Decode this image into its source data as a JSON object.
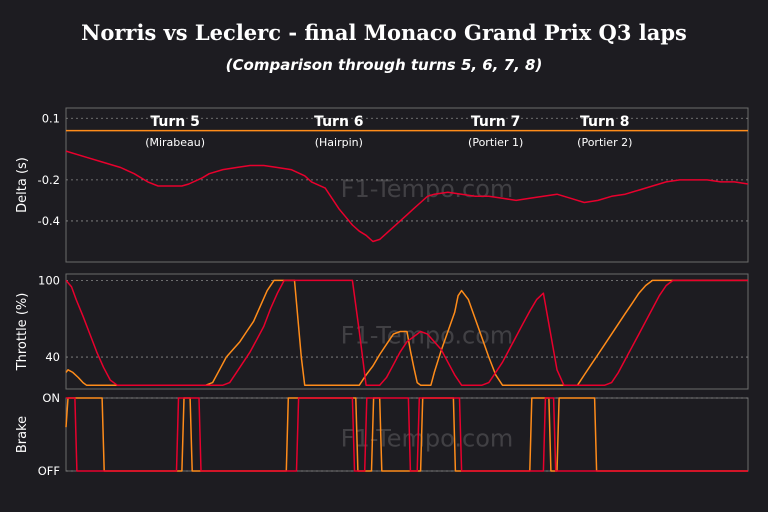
{
  "title": "Norris vs Leclerc - final Monaco Grand Prix Q3 laps",
  "subtitle": "(Comparison through turns 5, 6, 7, 8)",
  "watermark": "F1-Tempo.com",
  "colors": {
    "background": "#1d1c21",
    "norris": "#ff8c1a",
    "leclerc": "#e8002d",
    "grid": "#8a8a8a",
    "frame": "#6b6b6b",
    "text": "#ffffff",
    "muted": "#cfcfcf"
  },
  "turns": [
    {
      "name": "Turn 5",
      "label": "(Mirabeau)",
      "x": 16
    },
    {
      "name": "Turn 6",
      "label": "(Hairpin)",
      "x": 40
    },
    {
      "name": "Turn 7",
      "label": "(Portier 1)",
      "x": 63
    },
    {
      "name": "Turn 8",
      "label": "(Portier 2)",
      "x": 79
    }
  ],
  "chart_data": [
    {
      "type": "line",
      "ylabel": "Delta (s)",
      "ylim": [
        -0.6,
        0.15
      ],
      "yticks": [
        0.1,
        -0.2,
        -0.4
      ],
      "yticklabels": [
        "0.1",
        "-0.2",
        "-0.4"
      ],
      "xlim": [
        0,
        100
      ],
      "grid": true,
      "series": [
        {
          "name": "Norris",
          "color": "#ff8c1a",
          "x": [
            0,
            100
          ],
          "y": [
            0.04,
            0.04
          ]
        },
        {
          "name": "Leclerc",
          "color": "#e8002d",
          "x": [
            0,
            3,
            5,
            8,
            10,
            12,
            13.5,
            15,
            17,
            18,
            20,
            21,
            23,
            25,
            27,
            29,
            31,
            33,
            35,
            36,
            38,
            39,
            40,
            41,
            42,
            43,
            44,
            45,
            46,
            47,
            48,
            49,
            50,
            51,
            52,
            53,
            54,
            56,
            58,
            60,
            62,
            64,
            66,
            68,
            70,
            72,
            74,
            76,
            78,
            80,
            82,
            84,
            86,
            88,
            90,
            92,
            94,
            96,
            98,
            100
          ],
          "y": [
            -0.06,
            -0.09,
            -0.11,
            -0.14,
            -0.17,
            -0.21,
            -0.23,
            -0.23,
            -0.23,
            -0.22,
            -0.19,
            -0.17,
            -0.15,
            -0.14,
            -0.13,
            -0.13,
            -0.14,
            -0.15,
            -0.18,
            -0.21,
            -0.24,
            -0.29,
            -0.34,
            -0.38,
            -0.42,
            -0.45,
            -0.47,
            -0.5,
            -0.49,
            -0.46,
            -0.43,
            -0.4,
            -0.37,
            -0.34,
            -0.31,
            -0.28,
            -0.27,
            -0.26,
            -0.27,
            -0.28,
            -0.28,
            -0.29,
            -0.3,
            -0.29,
            -0.28,
            -0.27,
            -0.29,
            -0.31,
            -0.3,
            -0.28,
            -0.27,
            -0.25,
            -0.23,
            -0.21,
            -0.2,
            -0.2,
            -0.2,
            -0.21,
            -0.21,
            -0.22
          ]
        }
      ]
    },
    {
      "type": "line",
      "ylabel": "Throttle (%)",
      "ylim": [
        15,
        105
      ],
      "yticks": [
        100,
        40
      ],
      "yticklabels": [
        "100",
        "40"
      ],
      "xlim": [
        0,
        100
      ],
      "grid": true,
      "series": [
        {
          "name": "Norris",
          "color": "#ff8c1a",
          "x": [
            0,
            0.3,
            1.0,
            1.8,
            2.5,
            3.0,
            3.5,
            18.5,
            19.5,
            20.5,
            21.5,
            22.5,
            23.5,
            24.5,
            25.5,
            26.5,
            27.5,
            28.5,
            29.5,
            30.5,
            31.5,
            32.5,
            33,
            33.5,
            34,
            34.5,
            35,
            35.5,
            36,
            36.5,
            37,
            37.5,
            38,
            38.5,
            39,
            39.5,
            40,
            40.5,
            41,
            41.5,
            42,
            43,
            44,
            45,
            46,
            47,
            48,
            49,
            50,
            50.5,
            51,
            51.5,
            52,
            53,
            53.5,
            54,
            55,
            56,
            57,
            57.5,
            58,
            59,
            60,
            61,
            62,
            63,
            64,
            65,
            66,
            67,
            68,
            69,
            70,
            71,
            72,
            73,
            74,
            74.5,
            75,
            75.5,
            76,
            77,
            78,
            79,
            80,
            81,
            82,
            83,
            84,
            85,
            86,
            87,
            88,
            89,
            90,
            92,
            94,
            96,
            98,
            100
          ],
          "y": [
            28,
            30,
            28,
            24,
            20,
            18,
            18,
            18,
            18,
            18,
            20,
            30,
            40,
            46,
            52,
            60,
            68,
            80,
            92,
            100,
            100,
            100,
            100,
            100,
            70,
            40,
            18,
            18,
            18,
            18,
            18,
            18,
            18,
            18,
            18,
            18,
            18,
            18,
            18,
            18,
            18,
            18,
            26,
            33,
            42,
            50,
            58,
            60,
            60,
            45,
            32,
            20,
            18,
            18,
            18,
            28,
            45,
            60,
            75,
            88,
            92,
            85,
            70,
            55,
            40,
            26,
            18,
            18,
            18,
            18,
            18,
            18,
            18,
            18,
            18,
            18,
            18,
            18,
            18,
            22,
            26,
            34,
            42,
            50,
            58,
            66,
            74,
            82,
            90,
            96,
            100,
            100,
            100,
            100,
            100,
            100,
            100,
            100,
            100,
            100
          ]
        },
        {
          "name": "Leclerc",
          "color": "#e8002d",
          "x": [
            0,
            0.8,
            1.5,
            2.5,
            3.5,
            4.5,
            5.5,
            6.5,
            7.5,
            8.5,
            9.5,
            10.5,
            11.5,
            12.5,
            13.5,
            19,
            20,
            21,
            22,
            23,
            24,
            25,
            26,
            27,
            28,
            29,
            30,
            31,
            32,
            33,
            34,
            35,
            36,
            37,
            37.5,
            38,
            38.5,
            39,
            39.5,
            40,
            40.5,
            41,
            42,
            43,
            44,
            45,
            46,
            47,
            48,
            49,
            50,
            51,
            52,
            53,
            54,
            55,
            56,
            57,
            58,
            59,
            60,
            61,
            62,
            63,
            64,
            65,
            66,
            67,
            68,
            69,
            70,
            71,
            72,
            73,
            74,
            75,
            76,
            77,
            78,
            79,
            80,
            81,
            82,
            83,
            84,
            85,
            86,
            87,
            88,
            89,
            90,
            92,
            94,
            96,
            98,
            100
          ],
          "y": [
            100,
            95,
            85,
            72,
            58,
            44,
            32,
            22,
            18,
            18,
            18,
            18,
            18,
            18,
            18,
            18,
            18,
            18,
            18,
            18,
            20,
            28,
            36,
            44,
            54,
            64,
            78,
            90,
            100,
            100,
            100,
            100,
            100,
            100,
            100,
            100,
            100,
            100,
            100,
            100,
            100,
            100,
            100,
            60,
            18,
            18,
            18,
            24,
            34,
            44,
            52,
            56,
            60,
            58,
            52,
            46,
            36,
            26,
            18,
            18,
            18,
            18,
            20,
            28,
            36,
            46,
            56,
            66,
            76,
            85,
            90,
            60,
            30,
            18,
            18,
            18,
            18,
            18,
            18,
            18,
            20,
            28,
            38,
            48,
            58,
            68,
            78,
            88,
            96,
            100,
            100,
            100,
            100,
            100,
            100,
            100
          ]
        }
      ]
    },
    {
      "type": "line",
      "ylabel": "Brake",
      "ylim": [
        0,
        1
      ],
      "yticks": [
        1,
        0
      ],
      "yticklabels": [
        "ON",
        "OFF"
      ],
      "xlim": [
        0,
        100
      ],
      "grid": true,
      "series": [
        {
          "name": "Norris",
          "color": "#ff8c1a",
          "x": [
            0,
            0.3,
            0.6,
            5.3,
            5.6,
            17.0,
            17.3,
            18.2,
            18.5,
            32.3,
            32.6,
            42.5,
            42.8,
            44.8,
            45.1,
            46.0,
            46.3,
            52.0,
            52.3,
            56.8,
            57.1,
            68.0,
            68.3,
            70.8,
            71.1,
            72.0,
            72.3,
            77.5,
            77.8,
            100
          ],
          "y": [
            0.6,
            1,
            1,
            1,
            0,
            0,
            1,
            1,
            0,
            0,
            1,
            1,
            0,
            0,
            1,
            1,
            0,
            0,
            1,
            1,
            0,
            0,
            1,
            1,
            0,
            0,
            1,
            1,
            0,
            0
          ]
        },
        {
          "name": "Leclerc",
          "color": "#e8002d",
          "x": [
            0,
            1.3,
            1.6,
            16.2,
            16.5,
            19.5,
            19.8,
            33.8,
            34.1,
            42.0,
            42.3,
            43.8,
            44.1,
            50.2,
            50.5,
            51.5,
            51.8,
            57.7,
            58.0,
            70.0,
            70.3,
            71.5,
            71.8,
            77.0,
            77.3,
            100
          ],
          "y": [
            1,
            1,
            0,
            0,
            1,
            1,
            0,
            0,
            1,
            1,
            0,
            0,
            1,
            1,
            0,
            0,
            1,
            1,
            0,
            0,
            1,
            1,
            0,
            0,
            0,
            0
          ]
        }
      ]
    }
  ]
}
